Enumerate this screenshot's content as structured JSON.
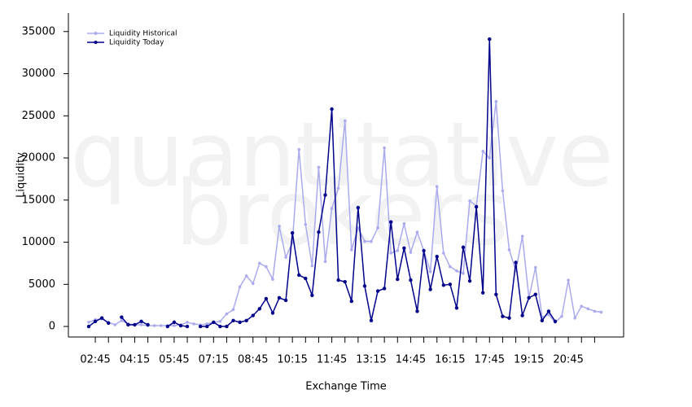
{
  "chart_data": {
    "type": "line",
    "watermark": [
      "quantitative",
      "brokers"
    ],
    "x_label": "Exchange Time",
    "y_label": "Liquidity",
    "categories": [
      null,
      "02:45",
      null,
      null,
      null,
      null,
      null,
      "04:15",
      null,
      null,
      null,
      null,
      null,
      "05:45",
      null,
      null,
      null,
      null,
      null,
      "07:15",
      null,
      null,
      null,
      null,
      null,
      "08:45",
      null,
      null,
      null,
      null,
      null,
      "10:15",
      null,
      null,
      null,
      null,
      null,
      "11:45",
      null,
      null,
      null,
      null,
      null,
      "13:15",
      null,
      null,
      null,
      null,
      null,
      "14:45",
      null,
      null,
      null,
      null,
      null,
      "16:15",
      null,
      null,
      null,
      null,
      null,
      "17:45",
      null,
      null,
      null,
      null,
      null,
      "19:15",
      null,
      null,
      null,
      null,
      null,
      "20:45",
      null,
      null,
      null,
      null,
      null
    ],
    "series": [
      {
        "name": "Liquidity Historical",
        "color": "#aaaaee",
        "values": [
          500,
          800,
          900,
          500,
          200,
          700,
          300,
          200,
          200,
          100,
          100,
          100,
          100,
          100,
          200,
          500,
          300,
          200,
          300,
          500,
          600,
          1500,
          2000,
          4700,
          6000,
          5100,
          7500,
          7100,
          5600,
          11900,
          8200,
          10000,
          21000,
          12100,
          7200,
          18900,
          7700,
          14000,
          16400,
          24400,
          9100,
          11700,
          10100,
          10100,
          11700,
          21200,
          8700,
          9000,
          12200,
          8800,
          11200,
          9000,
          6500,
          16600,
          8700,
          7100,
          6600,
          6300,
          14900,
          14300,
          20800,
          20000,
          26700,
          16100,
          9100,
          6600,
          10700,
          3400,
          7000,
          1100,
          1400,
          500,
          1200,
          5500,
          1000,
          2400,
          2100,
          1800,
          1700
        ]
      },
      {
        "name": "Liquidity Today",
        "color": "#00008b",
        "values": [
          0,
          600,
          1000,
          400,
          null,
          1100,
          200,
          200,
          600,
          200,
          null,
          null,
          0,
          500,
          100,
          0,
          null,
          0,
          0,
          500,
          0,
          0,
          700,
          500,
          700,
          1300,
          2100,
          3300,
          1600,
          3400,
          3100,
          11100,
          6100,
          5700,
          3700,
          11200,
          15600,
          25800,
          5500,
          5300,
          3000,
          14100,
          4800,
          700,
          4200,
          4500,
          12400,
          5600,
          9300,
          5500,
          1800,
          9000,
          4400,
          8300,
          4900,
          5000,
          2200,
          9400,
          5400,
          14200,
          4000,
          34100,
          3800,
          1200,
          1000,
          7600,
          1300,
          3400,
          3800,
          700,
          1800,
          600,
          null,
          null,
          null,
          null,
          null,
          null,
          null
        ]
      }
    ],
    "ylim": [
      -1250,
      37200
    ],
    "yticks": [
      0,
      5000,
      10000,
      15000,
      20000,
      25000,
      30000,
      35000
    ]
  }
}
